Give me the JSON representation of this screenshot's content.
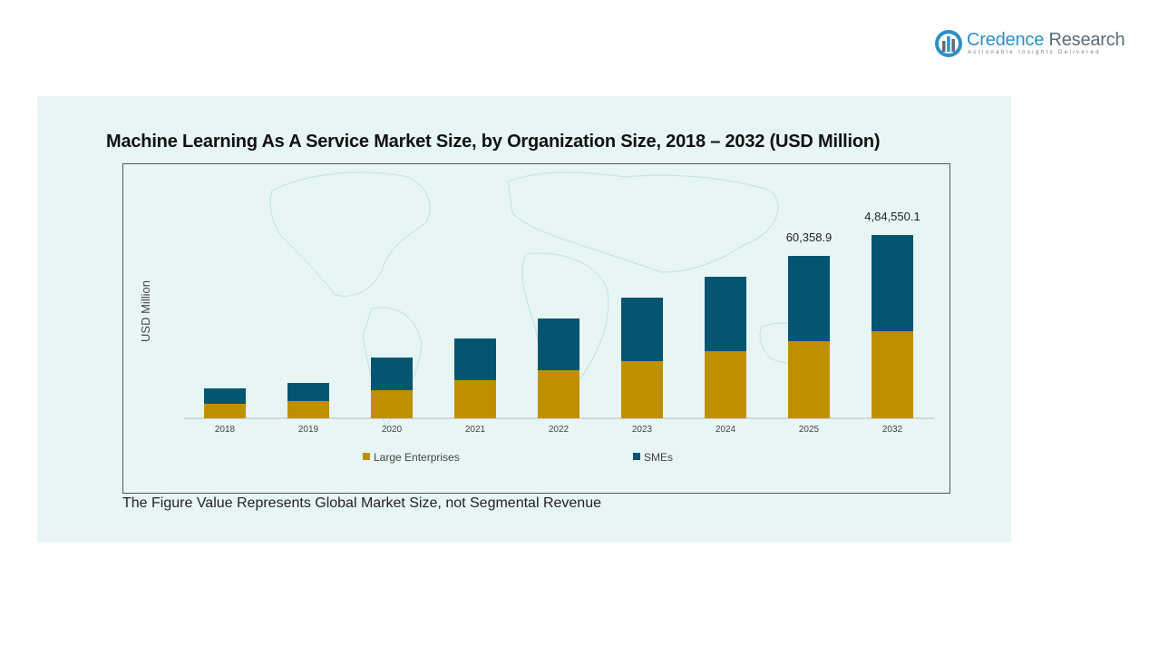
{
  "brand": {
    "name_part1": "Credence",
    "name_part2": " Research",
    "tagline": "Actionable Insights Delivered",
    "color_primary": "#2e8fc4",
    "color_secondary": "#5d6b78"
  },
  "footnote": "The Figure Value Represents Global Market Size, not Segmental Revenue",
  "chart_data": {
    "type": "bar",
    "stacked": true,
    "title": "Machine Learning As A Service Market Size, by Organization Size, 2018 – 2032 (USD Million)",
    "ylabel": "USD Million",
    "xlabel": "",
    "categories": [
      "2018",
      "2019",
      "2020",
      "2021",
      "2022",
      "2023",
      "2024",
      "2025",
      "2032"
    ],
    "series": [
      {
        "name": "Large Enterprises",
        "color": "#c08f00",
        "values": [
          16,
          19,
          31,
          42,
          53,
          63,
          74,
          85,
          96
        ]
      },
      {
        "name": "SMEs",
        "color": "#045572",
        "values": [
          17,
          20,
          36,
          46,
          57,
          70,
          82,
          94,
          106
        ]
      }
    ],
    "data_labels": [
      {
        "category": "2025",
        "text": "60,358.9"
      },
      {
        "category": "2032",
        "text": "4,84,550.1"
      }
    ],
    "ylim": [
      0,
      250
    ],
    "grid": false,
    "legend_position": "bottom"
  }
}
